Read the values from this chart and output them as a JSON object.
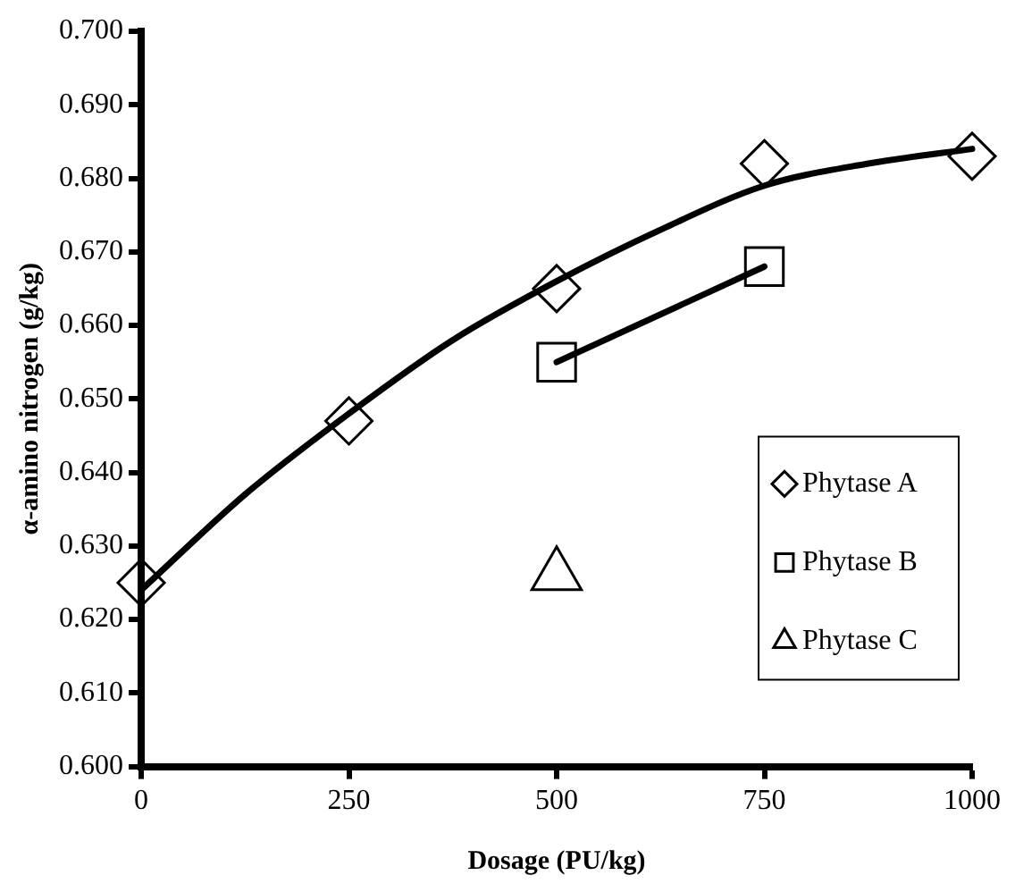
{
  "chart_data": {
    "type": "scatter",
    "xlabel": "Dosage (PU/kg)",
    "ylabel": "α-amino nitrogen (g/kg)",
    "xlim": [
      0,
      1000
    ],
    "xticks": [
      0,
      250,
      500,
      750,
      1000
    ],
    "ylim": [
      0.6,
      0.7
    ],
    "yticks": [
      {
        "value": 0.6,
        "label": "0.600"
      },
      {
        "value": 0.61,
        "label": "0.610"
      },
      {
        "value": 0.62,
        "label": "0.620"
      },
      {
        "value": 0.63,
        "label": "0.630"
      },
      {
        "value": 0.64,
        "label": "0.640"
      },
      {
        "value": 0.65,
        "label": "0.650"
      },
      {
        "value": 0.66,
        "label": "0.660"
      },
      {
        "value": 0.67,
        "label": "0.670"
      },
      {
        "value": 0.68,
        "label": "0.680"
      },
      {
        "value": 0.69,
        "label": "0.690"
      },
      {
        "value": 0.7,
        "label": "0.700"
      }
    ],
    "grid": false,
    "legend": "right",
    "series": [
      {
        "type": "line",
        "color": "#000000",
        "marker": "none",
        "line_style": "solid",
        "x": [
          0,
          125,
          250,
          375,
          500,
          625,
          750,
          875,
          1000
        ],
        "values": [
          0.624,
          0.637,
          0.648,
          0.658,
          0.666,
          0.673,
          0.679,
          0.682,
          0.684
        ]
      },
      {
        "type": "line",
        "color": "#000000",
        "marker": "none",
        "line_style": "solid",
        "x": [
          500,
          750
        ],
        "values": [
          0.655,
          0.668
        ]
      },
      {
        "type": "scatter",
        "name": "Phytase A",
        "color": "#000000",
        "marker": "diamond",
        "x": [
          0,
          250,
          500,
          750,
          1000
        ],
        "values": [
          0.625,
          0.647,
          0.665,
          0.682,
          0.683
        ]
      },
      {
        "type": "scatter",
        "name": "Phytase B",
        "color": "#000000",
        "marker": "square",
        "x": [
          500,
          750
        ],
        "values": [
          0.655,
          0.668
        ]
      },
      {
        "type": "scatter",
        "name": "Phytase C",
        "color": "#000000",
        "marker": "triangle",
        "x": [
          500
        ],
        "values": [
          0.626
        ]
      }
    ]
  }
}
